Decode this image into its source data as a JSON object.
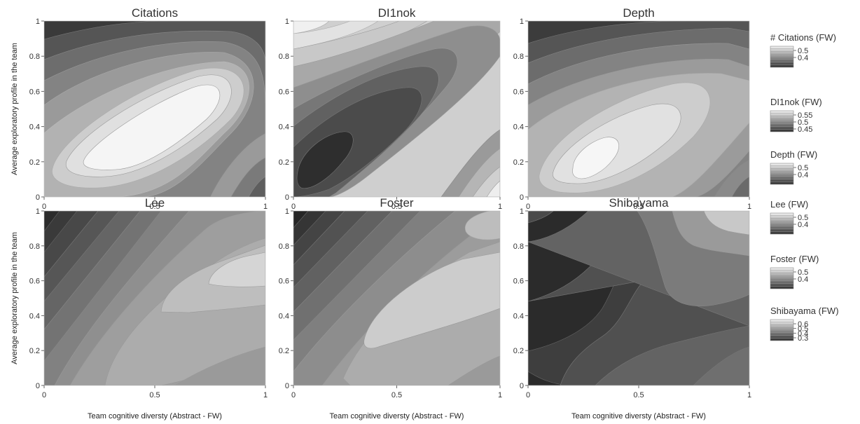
{
  "chart_data": {
    "type": "contour",
    "colormap": "greys",
    "shared_axes": {
      "xlabel": "Team cognitive diversty (Abstract - FW)",
      "ylabel": "Average exploratory profile in the team",
      "xlim": [
        0,
        1
      ],
      "ylim": [
        0,
        1
      ],
      "x_ticks": [
        "0",
        "0.5",
        "1"
      ],
      "y_ticks": [
        "0",
        "0.2",
        "0.4",
        "0.6",
        "0.8",
        "1"
      ]
    },
    "panels": [
      {
        "title": "Citations",
        "legend_title": "# Citations (FW)",
        "legend_ticks": [
          "0.5",
          "0.4"
        ]
      },
      {
        "title": "DI1nok",
        "legend_title": "DI1nok (FW)",
        "legend_ticks": [
          "0.55",
          "0.5",
          "0.45"
        ]
      },
      {
        "title": "Depth",
        "legend_title": "Depth (FW)",
        "legend_ticks": [
          "0.5",
          "0.4"
        ]
      },
      {
        "title": "Lee",
        "legend_title": "Lee (FW)",
        "legend_ticks": [
          "0.5",
          "0.4"
        ]
      },
      {
        "title": "Foster",
        "legend_title": "Foster (FW)",
        "legend_ticks": [
          "0.5",
          "0.4"
        ]
      },
      {
        "title": "Shibayama",
        "legend_title": "Shibayama (FW)",
        "legend_ticks": [
          "0.6",
          "0.5",
          "0.4",
          "0.3"
        ]
      }
    ]
  }
}
